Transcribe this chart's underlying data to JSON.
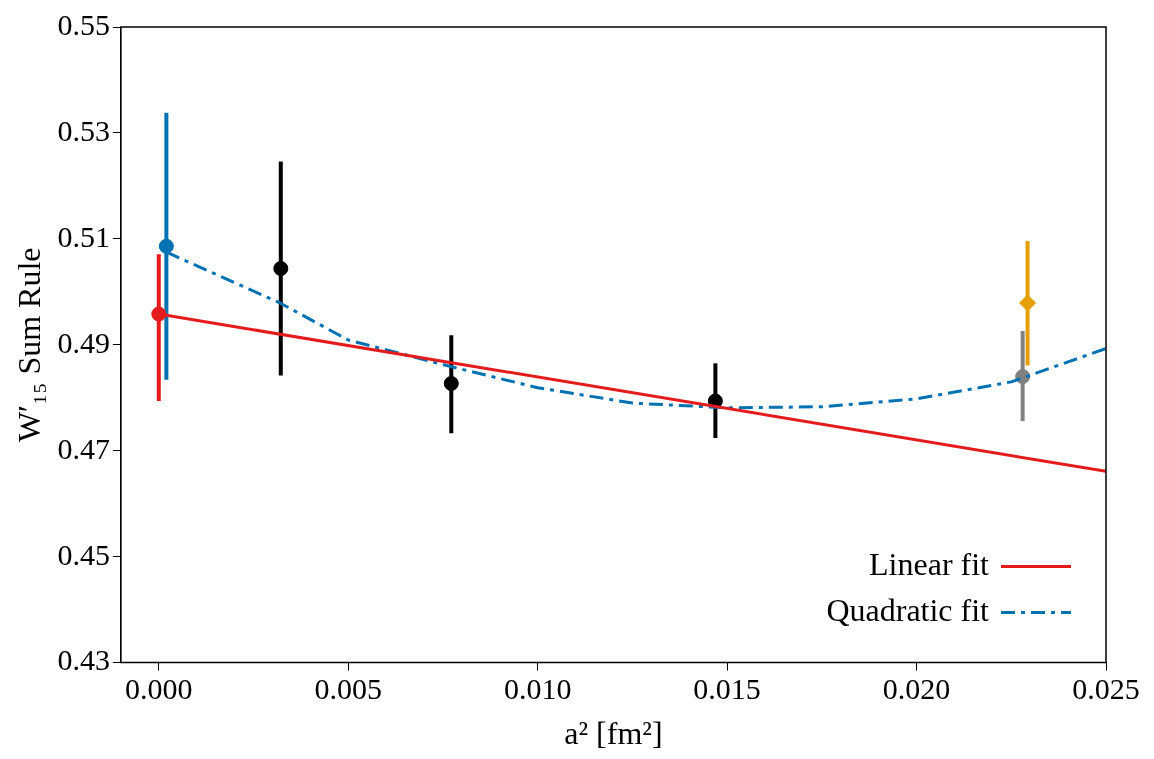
{
  "chart_data": {
    "type": "scatter",
    "xlabel": "a² [fm²]",
    "ylabel": "W′₁₅ Sum Rule",
    "xlim": [
      -0.001,
      0.025
    ],
    "xticks": [
      {
        "value": 0,
        "label": "0.000"
      },
      {
        "value": 0.005,
        "label": "0.005"
      },
      {
        "value": 0.01,
        "label": "0.010"
      },
      {
        "value": 0.015,
        "label": "0.015"
      },
      {
        "value": 0.02,
        "label": "0.020"
      },
      {
        "value": 0.025,
        "label": "0.025"
      }
    ],
    "ylim": [
      0.43,
      0.55
    ],
    "yticks": [
      0.43,
      0.45,
      0.47,
      0.49,
      0.51,
      0.53,
      0.55
    ],
    "grid": false,
    "legend": "bottom right",
    "marker": "circle",
    "series": [
      {
        "name": "Linear fit",
        "type": "line",
        "color": "#e41a1c",
        "line_style": "solid",
        "marker": "none",
        "x": [
          0,
          0.025
        ],
        "values": [
          0.4958,
          0.4661
        ]
      },
      {
        "name": "Quadratic fit",
        "type": "line",
        "color": "#0072b2",
        "line_style": "dashed",
        "marker": "none",
        "x": [
          0.0002,
          0.0032,
          0.005,
          0.0077,
          0.01,
          0.0125,
          0.015,
          0.0175,
          0.02,
          0.0225,
          0.025
        ],
        "values": [
          0.5075,
          0.4979,
          0.4909,
          0.4859,
          0.4819,
          0.479,
          0.4781,
          0.4783,
          0.4798,
          0.483,
          0.4893
        ]
      },
      {
        "color": "#e41a1c",
        "x": [
          0
        ],
        "values": [
          0.4958
        ],
        "errors": [
          [
            0.4794,
            0.5071
          ]
        ]
      },
      {
        "color": "#0072b2",
        "x": [
          0.0002
        ],
        "values": [
          0.5086
        ],
        "errors": [
          [
            0.4834,
            0.5338
          ]
        ]
      },
      {
        "color": "#000000",
        "x": [
          0.00322,
          0.00772,
          0.01469
        ],
        "values": [
          0.5044,
          0.4827,
          0.4794
        ],
        "errors": [
          [
            0.4842,
            0.5246
          ],
          [
            0.4733,
            0.4918
          ],
          [
            0.4724,
            0.4865
          ]
        ]
      },
      {
        "color": "#808080",
        "x": [
          0.0228
        ],
        "values": [
          0.484
        ],
        "errors": [
          [
            0.4756,
            0.4926
          ]
        ]
      },
      {
        "color": "#e69f00",
        "marker": "diamond",
        "x": [
          0.02293
        ],
        "values": [
          0.4979
        ],
        "errors": [
          [
            0.4861,
            0.5096
          ]
        ]
      }
    ]
  }
}
